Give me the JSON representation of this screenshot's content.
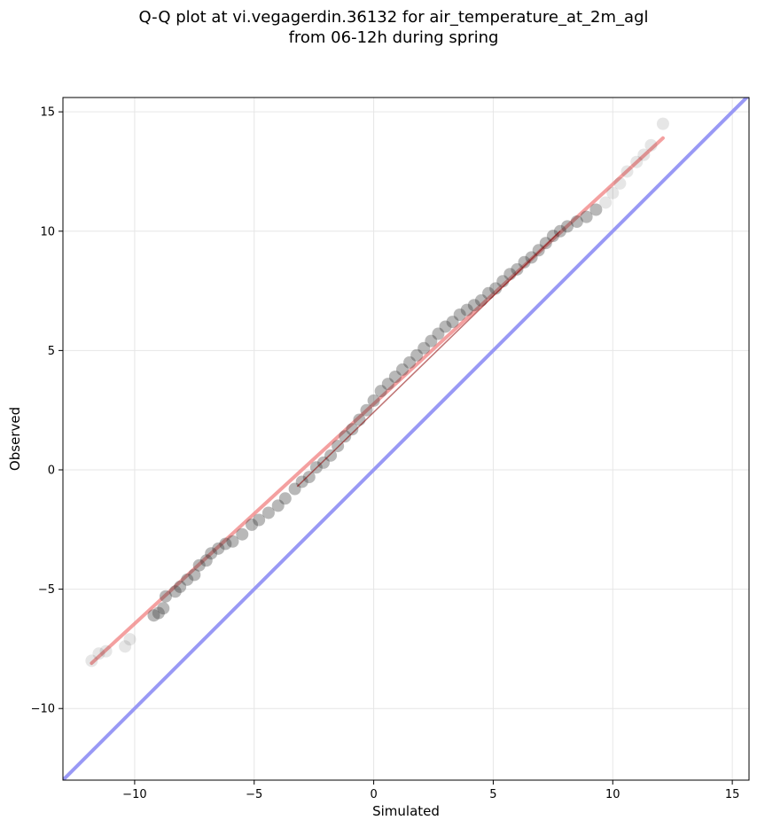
{
  "chart_data": {
    "type": "scatter",
    "title_line1": "Q-Q plot at vi.vegagerdin.36132 for air_temperature_at_2m_agl",
    "title_line2": "from 06-12h during spring",
    "xlabel": "Simulated",
    "ylabel": "Observed",
    "xlim": [
      -13.0,
      15.7
    ],
    "ylim": [
      -13.0,
      15.6
    ],
    "xticks": [
      -10,
      -5,
      0,
      5,
      10,
      15
    ],
    "yticks": [
      -10,
      -5,
      0,
      5,
      10,
      15
    ],
    "xtick_labels": [
      "−10",
      "−5",
      "0",
      "5",
      "10",
      "15"
    ],
    "ytick_labels": [
      "−10",
      "−5",
      "0",
      "5",
      "10",
      "15"
    ],
    "grid": true,
    "colors": {
      "points": "#333333",
      "fit_line": "#f08080",
      "fit_line_core": "#8b0000",
      "identity_line": "#9999f5",
      "grid": "#e6e6e6"
    },
    "identity_line": {
      "x": [
        -13.0,
        15.7
      ],
      "y": [
        -13.0,
        15.7
      ]
    },
    "fit_line": {
      "x": [
        -11.8,
        12.1
      ],
      "y": [
        -8.1,
        13.9
      ]
    },
    "points": [
      [
        -11.8,
        -8.0
      ],
      [
        -11.5,
        -7.7
      ],
      [
        -11.2,
        -7.6
      ],
      [
        -10.4,
        -7.4
      ],
      [
        -10.2,
        -7.1
      ],
      [
        -9.2,
        -6.1
      ],
      [
        -9.0,
        -6.0
      ],
      [
        -8.8,
        -5.8
      ],
      [
        -8.7,
        -5.3
      ],
      [
        -8.3,
        -5.1
      ],
      [
        -8.1,
        -4.9
      ],
      [
        -7.8,
        -4.6
      ],
      [
        -7.5,
        -4.4
      ],
      [
        -7.3,
        -4.0
      ],
      [
        -7.0,
        -3.8
      ],
      [
        -6.8,
        -3.5
      ],
      [
        -6.5,
        -3.3
      ],
      [
        -6.2,
        -3.1
      ],
      [
        -5.9,
        -3.0
      ],
      [
        -5.5,
        -2.7
      ],
      [
        -5.1,
        -2.3
      ],
      [
        -4.8,
        -2.1
      ],
      [
        -4.4,
        -1.8
      ],
      [
        -4.0,
        -1.5
      ],
      [
        -3.7,
        -1.2
      ],
      [
        -3.3,
        -0.8
      ],
      [
        -3.0,
        -0.5
      ],
      [
        -2.7,
        -0.3
      ],
      [
        -2.4,
        0.1
      ],
      [
        -2.1,
        0.3
      ],
      [
        -1.8,
        0.6
      ],
      [
        -1.5,
        1.0
      ],
      [
        -1.2,
        1.4
      ],
      [
        -0.9,
        1.7
      ],
      [
        -0.6,
        2.1
      ],
      [
        -0.3,
        2.5
      ],
      [
        0.0,
        2.9
      ],
      [
        0.3,
        3.3
      ],
      [
        0.6,
        3.6
      ],
      [
        0.9,
        3.9
      ],
      [
        1.2,
        4.2
      ],
      [
        1.5,
        4.5
      ],
      [
        1.8,
        4.8
      ],
      [
        2.1,
        5.1
      ],
      [
        2.4,
        5.4
      ],
      [
        2.7,
        5.7
      ],
      [
        3.0,
        6.0
      ],
      [
        3.3,
        6.2
      ],
      [
        3.6,
        6.5
      ],
      [
        3.9,
        6.7
      ],
      [
        4.2,
        6.9
      ],
      [
        4.5,
        7.1
      ],
      [
        4.8,
        7.4
      ],
      [
        5.1,
        7.6
      ],
      [
        5.4,
        7.9
      ],
      [
        5.7,
        8.2
      ],
      [
        6.0,
        8.4
      ],
      [
        6.3,
        8.7
      ],
      [
        6.6,
        8.9
      ],
      [
        6.9,
        9.2
      ],
      [
        7.2,
        9.5
      ],
      [
        7.5,
        9.8
      ],
      [
        7.8,
        10.0
      ],
      [
        8.1,
        10.2
      ],
      [
        8.5,
        10.4
      ],
      [
        8.9,
        10.6
      ],
      [
        9.3,
        10.9
      ],
      [
        9.7,
        11.2
      ],
      [
        10.0,
        11.6
      ],
      [
        10.3,
        12.0
      ],
      [
        10.6,
        12.5
      ],
      [
        11.0,
        12.9
      ],
      [
        11.3,
        13.2
      ],
      [
        11.6,
        13.6
      ],
      [
        12.1,
        14.5
      ]
    ]
  }
}
